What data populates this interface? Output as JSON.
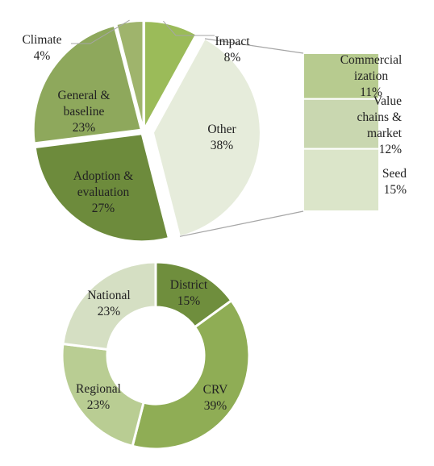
{
  "chart_data": [
    {
      "type": "pie",
      "subtype": "pie-of-bar",
      "slices": [
        {
          "label": "Impact",
          "value": 8,
          "value_label": "8%",
          "color": "#9bbb59"
        },
        {
          "label": "Other",
          "value": 38,
          "value_label": "38%",
          "color": "#e6ecdb"
        },
        {
          "label": "Adoption & evaluation",
          "value": 27,
          "value_label": "27%",
          "color": "#6d8b3c"
        },
        {
          "label": "General & baseline",
          "value": 23,
          "value_label": "23%",
          "color": "#8ea85c"
        },
        {
          "label": "Climate",
          "value": 4,
          "value_label": "4%",
          "color": "#9fb46c"
        }
      ],
      "breakdown_of": "Other",
      "breakdown": [
        {
          "label": "Commercial ization",
          "value": 11,
          "value_label": "11%",
          "color": "#b7cb8f"
        },
        {
          "label": "Value chains & market",
          "value": 12,
          "value_label": "12%",
          "color": "#c9d7b0"
        },
        {
          "label": "Seed",
          "value": 15,
          "value_label": "15%",
          "color": "#dbe5c9"
        }
      ]
    },
    {
      "type": "pie",
      "subtype": "donut",
      "slices": [
        {
          "label": "District",
          "value": 15,
          "value_label": "15%",
          "color": "#6f8e3d"
        },
        {
          "label": "CRV",
          "value": 39,
          "value_label": "39%",
          "color": "#8fad55"
        },
        {
          "label": "Regional",
          "value": 23,
          "value_label": "23%",
          "color": "#b9cd93"
        },
        {
          "label": "National",
          "value": 23,
          "value_label": "23%",
          "color": "#d5dfc3"
        }
      ]
    }
  ]
}
